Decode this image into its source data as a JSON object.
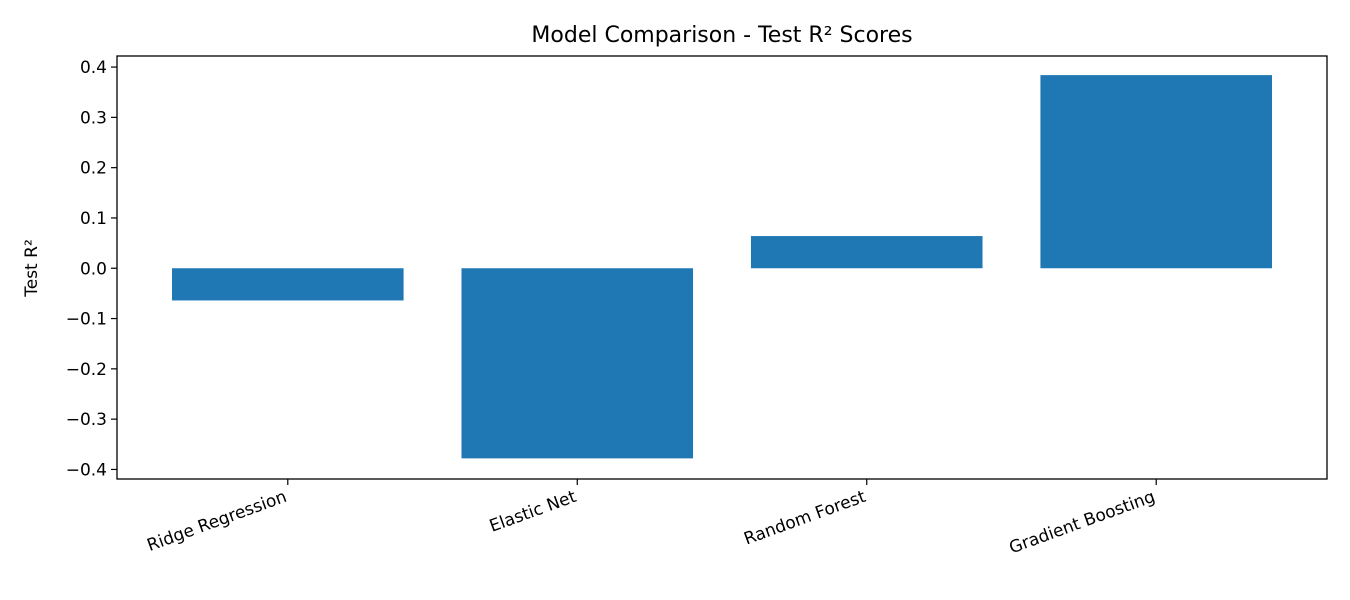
{
  "chart_data": {
    "type": "bar",
    "title": "Model Comparison - Test R² Scores",
    "xlabel": "",
    "ylabel": "Test R²",
    "categories": [
      "Ridge Regression",
      "Elastic Net",
      "Random Forest",
      "Gradient Boosting"
    ],
    "values": [
      -0.064,
      -0.378,
      0.064,
      0.384
    ],
    "ylim": [
      -0.419,
      0.422
    ],
    "yticks": [
      -0.4,
      -0.3,
      -0.2,
      -0.1,
      0.0,
      0.1,
      0.2,
      0.3,
      0.4
    ],
    "ytick_labels": [
      "−0.4",
      "−0.3",
      "−0.2",
      "−0.1",
      "0.0",
      "0.1",
      "0.2",
      "0.3",
      "0.4"
    ],
    "bar_color": "#1f77b4",
    "grid": false,
    "legend": "none"
  }
}
